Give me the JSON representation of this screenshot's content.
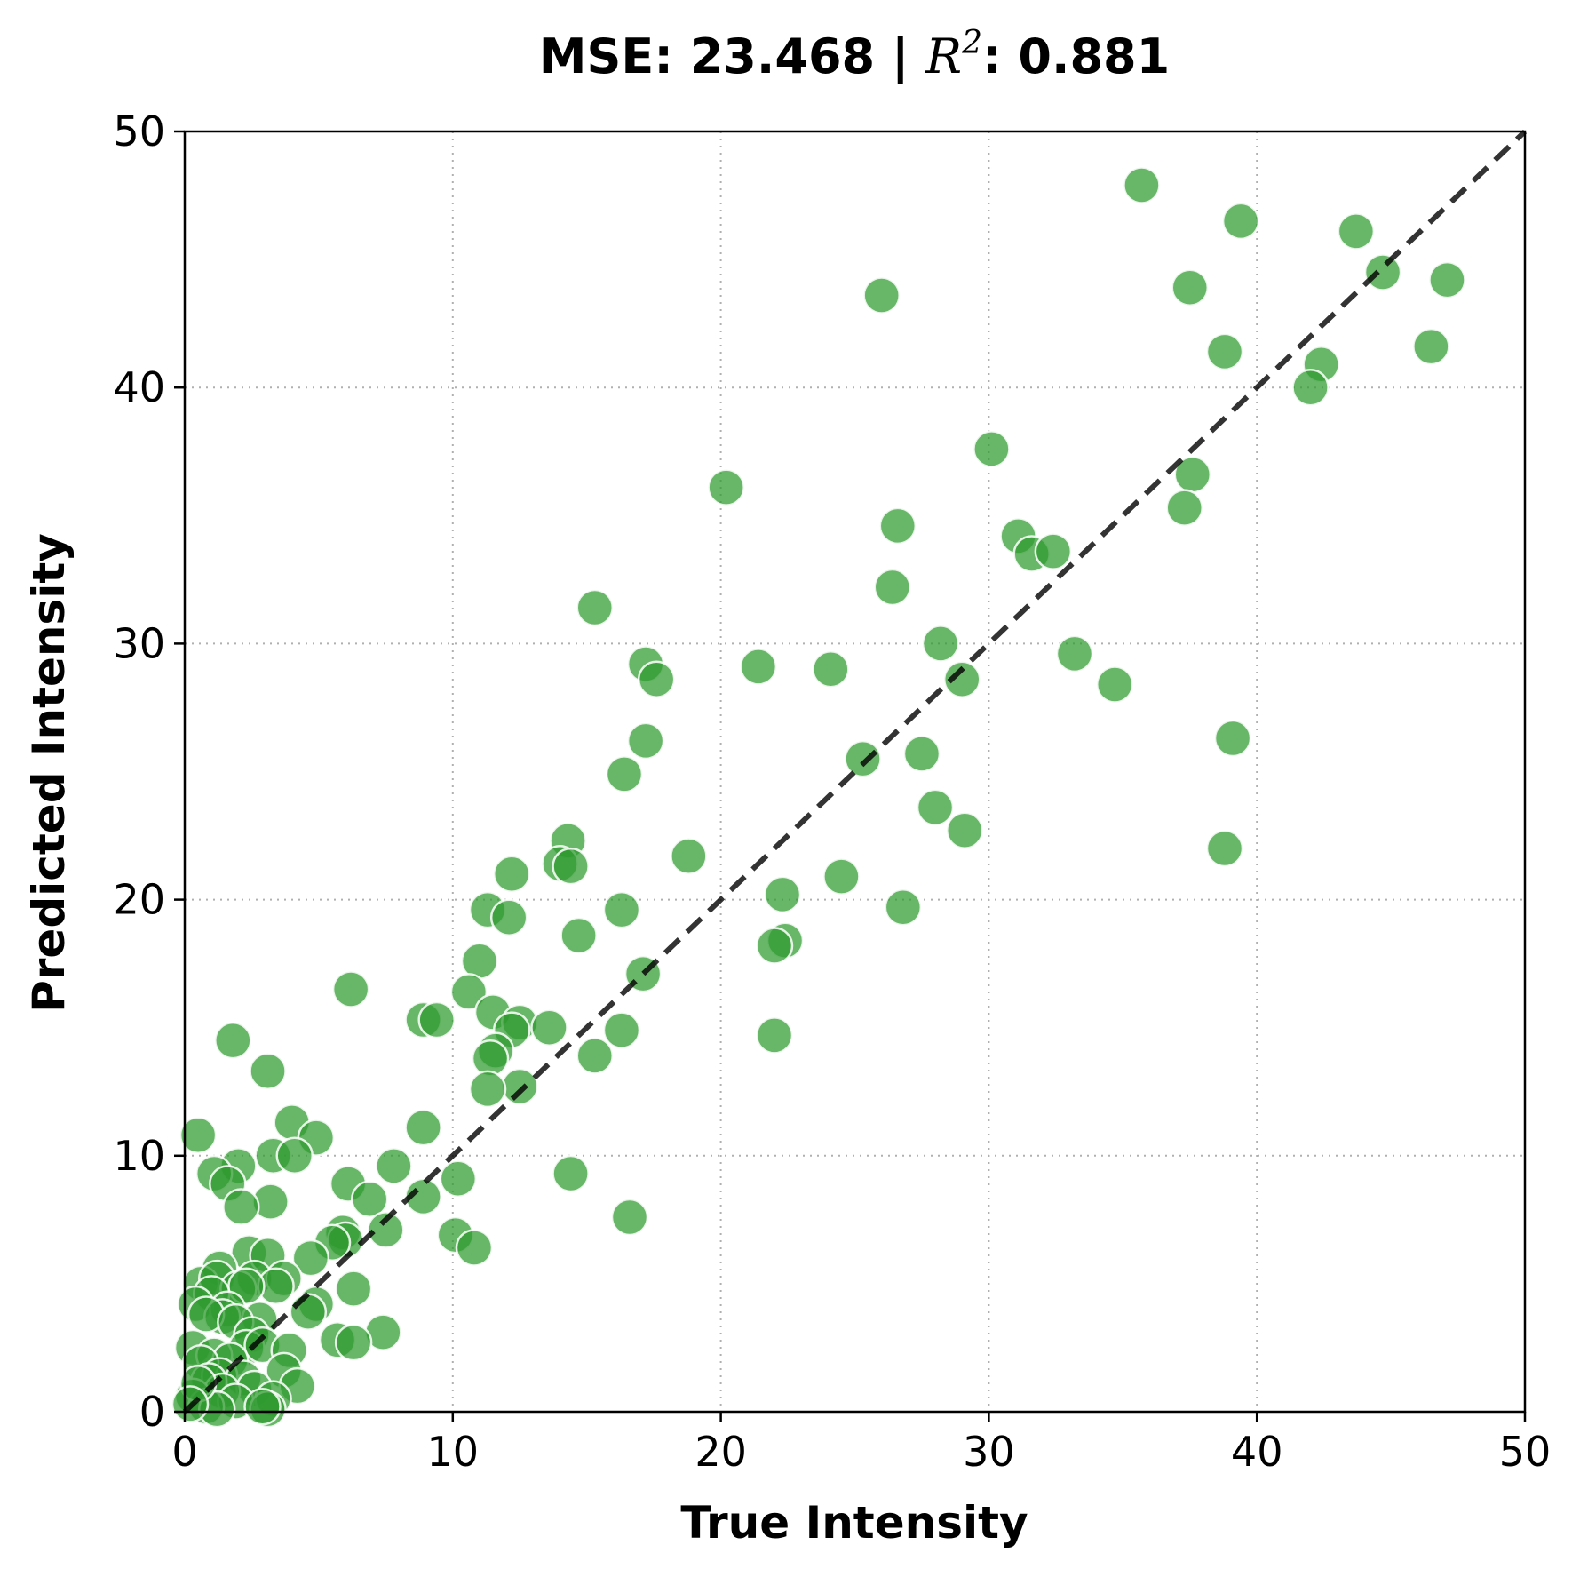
{
  "chart_data": {
    "type": "scatter",
    "title": {
      "prefix": "MSE: 23.468 | ",
      "r_symbol": "R",
      "r_exponent": "2",
      "suffix": ": 0.881"
    },
    "xlabel": "True Intensity",
    "ylabel": "Predicted Intensity",
    "xlim": [
      0,
      50
    ],
    "ylim": [
      0,
      50
    ],
    "xticks": [
      0,
      10,
      20,
      30,
      40,
      50
    ],
    "yticks": [
      0,
      10,
      20,
      30,
      40,
      50
    ],
    "grid": true,
    "reference_line": {
      "style": "dashed",
      "color": "#000000",
      "from": [
        0,
        0
      ],
      "to": [
        50,
        50
      ]
    },
    "marker_color": "#2e9a2e",
    "marker_opacity": 0.72,
    "points": [
      [
        35.7,
        47.9
      ],
      [
        39.4,
        46.5
      ],
      [
        43.7,
        46.1
      ],
      [
        44.7,
        44.5
      ],
      [
        47.1,
        44.2
      ],
      [
        37.5,
        43.9
      ],
      [
        26.0,
        43.6
      ],
      [
        38.8,
        41.4
      ],
      [
        46.5,
        41.6
      ],
      [
        42.4,
        40.9
      ],
      [
        42.0,
        40.0
      ],
      [
        30.1,
        37.6
      ],
      [
        20.2,
        36.1
      ],
      [
        37.6,
        36.6
      ],
      [
        37.3,
        35.3
      ],
      [
        26.6,
        34.6
      ],
      [
        31.1,
        34.2
      ],
      [
        31.6,
        33.5
      ],
      [
        32.4,
        33.6
      ],
      [
        26.4,
        32.2
      ],
      [
        15.3,
        31.4
      ],
      [
        28.2,
        30.0
      ],
      [
        17.2,
        29.2
      ],
      [
        21.4,
        29.1
      ],
      [
        24.1,
        29.0
      ],
      [
        33.2,
        29.6
      ],
      [
        17.6,
        28.6
      ],
      [
        29.0,
        28.6
      ],
      [
        34.7,
        28.4
      ],
      [
        17.2,
        26.2
      ],
      [
        39.1,
        26.3
      ],
      [
        27.5,
        25.7
      ],
      [
        25.3,
        25.5
      ],
      [
        16.4,
        24.9
      ],
      [
        28.0,
        23.6
      ],
      [
        29.1,
        22.7
      ],
      [
        14.3,
        22.3
      ],
      [
        38.8,
        22.0
      ],
      [
        18.8,
        21.7
      ],
      [
        14.0,
        21.4
      ],
      [
        14.4,
        21.3
      ],
      [
        12.2,
        21.0
      ],
      [
        24.5,
        20.9
      ],
      [
        22.3,
        20.2
      ],
      [
        11.3,
        19.6
      ],
      [
        16.3,
        19.6
      ],
      [
        26.8,
        19.7
      ],
      [
        12.1,
        19.3
      ],
      [
        14.7,
        18.6
      ],
      [
        22.4,
        18.4
      ],
      [
        22.0,
        18.2
      ],
      [
        11.0,
        17.6
      ],
      [
        17.1,
        17.1
      ],
      [
        6.2,
        16.5
      ],
      [
        10.6,
        16.4
      ],
      [
        11.5,
        15.6
      ],
      [
        8.9,
        15.3
      ],
      [
        9.4,
        15.3
      ],
      [
        12.5,
        15.2
      ],
      [
        13.6,
        15.0
      ],
      [
        12.2,
        14.9
      ],
      [
        16.3,
        14.9
      ],
      [
        22.0,
        14.7
      ],
      [
        1.8,
        14.5
      ],
      [
        15.3,
        13.9
      ],
      [
        11.6,
        14.1
      ],
      [
        11.4,
        13.8
      ],
      [
        3.1,
        13.3
      ],
      [
        12.5,
        12.7
      ],
      [
        11.3,
        12.6
      ],
      [
        4.0,
        11.3
      ],
      [
        8.9,
        11.1
      ],
      [
        0.5,
        10.8
      ],
      [
        4.9,
        10.7
      ],
      [
        3.3,
        10.0
      ],
      [
        4.1,
        10.0
      ],
      [
        7.8,
        9.6
      ],
      [
        2.0,
        9.6
      ],
      [
        1.1,
        9.3
      ],
      [
        14.4,
        9.3
      ],
      [
        10.2,
        9.1
      ],
      [
        6.1,
        8.9
      ],
      [
        1.6,
        8.9
      ],
      [
        6.9,
        8.3
      ],
      [
        8.9,
        8.4
      ],
      [
        3.2,
        8.2
      ],
      [
        2.1,
        8.0
      ],
      [
        16.6,
        7.6
      ],
      [
        7.5,
        7.1
      ],
      [
        5.9,
        7.0
      ],
      [
        10.1,
        6.9
      ],
      [
        6.0,
        6.7
      ],
      [
        5.5,
        6.6
      ],
      [
        10.8,
        6.4
      ],
      [
        2.4,
        6.2
      ],
      [
        3.1,
        6.1
      ],
      [
        4.7,
        6.0
      ],
      [
        1.3,
        5.6
      ],
      [
        0.6,
        5.0
      ],
      [
        2.6,
        5.2
      ],
      [
        3.7,
        5.2
      ],
      [
        1.2,
        5.2
      ],
      [
        3.4,
        4.9
      ],
      [
        6.3,
        4.8
      ],
      [
        2.0,
        4.8
      ],
      [
        2.3,
        4.9
      ],
      [
        1.0,
        4.6
      ],
      [
        4.9,
        4.2
      ],
      [
        0.4,
        4.2
      ],
      [
        1.6,
        4.0
      ],
      [
        4.6,
        3.9
      ],
      [
        1.4,
        3.7
      ],
      [
        2.8,
        3.6
      ],
      [
        0.8,
        3.8
      ],
      [
        1.9,
        3.5
      ],
      [
        7.4,
        3.1
      ],
      [
        2.5,
        3.0
      ],
      [
        5.7,
        2.8
      ],
      [
        6.3,
        2.7
      ],
      [
        0.3,
        2.5
      ],
      [
        2.3,
        2.5
      ],
      [
        2.9,
        2.6
      ],
      [
        3.9,
        2.4
      ],
      [
        1.1,
        2.2
      ],
      [
        1.7,
        2.0
      ],
      [
        0.6,
        1.9
      ],
      [
        3.7,
        1.6
      ],
      [
        1.3,
        1.4
      ],
      [
        2.2,
        1.3
      ],
      [
        0.9,
        1.2
      ],
      [
        4.2,
        1.0
      ],
      [
        2.6,
        0.9
      ],
      [
        1.4,
        0.8
      ],
      [
        0.3,
        0.6
      ],
      [
        3.3,
        0.5
      ],
      [
        1.9,
        0.4
      ],
      [
        0.8,
        0.2
      ],
      [
        3.1,
        0.1
      ],
      [
        1.2,
        0.1
      ],
      [
        0.5,
        1.1
      ],
      [
        2.9,
        0.2
      ],
      [
        0.2,
        0.3
      ]
    ]
  }
}
